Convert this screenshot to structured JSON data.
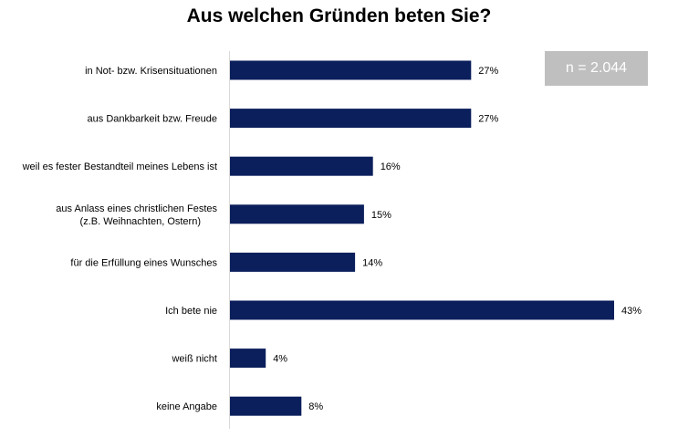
{
  "chart_data": {
    "type": "bar",
    "orientation": "horizontal",
    "title": "Aus welchen Gründen beten Sie?",
    "annotation": "n = 2.044",
    "categories": [
      [
        "in Not- bzw. Krisensituationen"
      ],
      [
        "aus Dankbarkeit bzw. Freude"
      ],
      [
        "weil es fester Bestandteil meines Lebens ist"
      ],
      [
        "aus Anlass eines christlichen Festes",
        "(z.B. Weihnachten, Ostern)"
      ],
      [
        "für die Erfüllung eines Wunsches"
      ],
      [
        "Ich bete nie"
      ],
      [
        "weiß nicht"
      ],
      [
        "keine Angabe"
      ]
    ],
    "values": [
      27,
      27,
      16,
      15,
      14,
      43,
      4,
      8
    ],
    "value_labels": [
      "27%",
      "27%",
      "16%",
      "15%",
      "14%",
      "43%",
      "4%",
      "8%"
    ],
    "unit": "%",
    "xlim": [
      0,
      43
    ],
    "grid": false,
    "bar_color": "#0b1f5c"
  }
}
